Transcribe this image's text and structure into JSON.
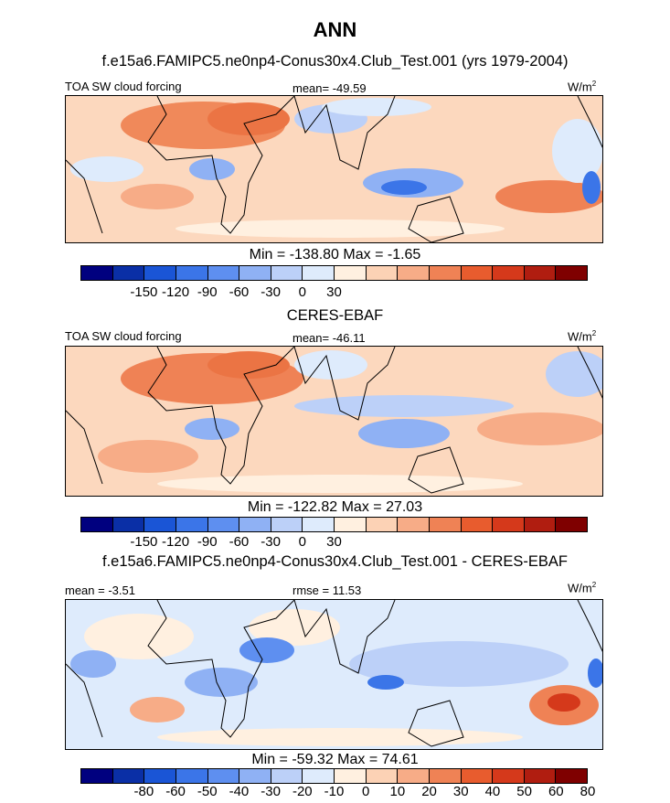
{
  "title": "ANN",
  "panels": [
    {
      "subtitle": "f.e15a6.FAMIPC5.ne0np4-Conus30x4.Club_Test.001 (yrs 1979-2004)",
      "left_label": "TOA SW cloud forcing",
      "center_label": "mean= -49.59",
      "units": "W/m",
      "units_sup": "2",
      "minmax": "Min = -138.80 Max =  -1.65"
    },
    {
      "subtitle": "CERES-EBAF",
      "left_label": "TOA SW cloud forcing",
      "center_label": "mean= -46.11",
      "units": "W/m",
      "units_sup": "2",
      "minmax": "Min = -122.82 Max =  27.03"
    },
    {
      "subtitle": "f.e15a6.FAMIPC5.ne0np4-Conus30x4.Club_Test.001 - CERES-EBAF",
      "left_label": "mean =  -3.51",
      "center_label": "rmse =  11.53",
      "units": "W/m",
      "units_sup": "2",
      "minmax": "Min = -59.32 Max =  74.61"
    }
  ],
  "chart_data": [
    {
      "type": "heatmap",
      "title": "f.e15a6.FAMIPC5.ne0np4-Conus30x4.Club_Test.001 (yrs 1979-2004)",
      "variable": "TOA SW cloud forcing",
      "units": "W/m2",
      "mean": -49.59,
      "min": -138.8,
      "max": -1.65,
      "colorbar_ticks": [
        "-150",
        "-120",
        "-90",
        "-60",
        "-30",
        "0",
        "30"
      ],
      "colors": [
        "#00007f",
        "#0a2fa6",
        "#1a55d6",
        "#3b75e8",
        "#5e8ff0",
        "#8fb1f4",
        "#bcd0f8",
        "#deebfc",
        "#fff0e0",
        "#fcd2b5",
        "#f7ac87",
        "#ef8255",
        "#e85c2e",
        "#d5391b",
        "#b01d10",
        "#7f0000"
      ]
    },
    {
      "type": "heatmap",
      "title": "CERES-EBAF",
      "variable": "TOA SW cloud forcing",
      "units": "W/m2",
      "mean": -46.11,
      "min": -122.82,
      "max": 27.03,
      "colorbar_ticks": [
        "-150",
        "-120",
        "-90",
        "-60",
        "-30",
        "0",
        "30"
      ],
      "colors": [
        "#00007f",
        "#0a2fa6",
        "#1a55d6",
        "#3b75e8",
        "#5e8ff0",
        "#8fb1f4",
        "#bcd0f8",
        "#deebfc",
        "#fff0e0",
        "#fcd2b5",
        "#f7ac87",
        "#ef8255",
        "#e85c2e",
        "#d5391b",
        "#b01d10",
        "#7f0000"
      ]
    },
    {
      "type": "heatmap",
      "title": "f.e15a6.FAMIPC5.ne0np4-Conus30x4.Club_Test.001 - CERES-EBAF",
      "units": "W/m2",
      "mean": -3.51,
      "rmse": 11.53,
      "min": -59.32,
      "max": 74.61,
      "colorbar_ticks": [
        "-80",
        "-60",
        "-50",
        "-40",
        "-30",
        "-20",
        "-10",
        "0",
        "10",
        "20",
        "30",
        "40",
        "50",
        "60",
        "80"
      ],
      "colors": [
        "#00007f",
        "#0a2fa6",
        "#1a55d6",
        "#3b75e8",
        "#5e8ff0",
        "#8fb1f4",
        "#bcd0f8",
        "#deebfc",
        "#fff0e0",
        "#fcd2b5",
        "#f7ac87",
        "#ef8255",
        "#e85c2e",
        "#d5391b",
        "#b01d10",
        "#7f0000"
      ]
    }
  ]
}
